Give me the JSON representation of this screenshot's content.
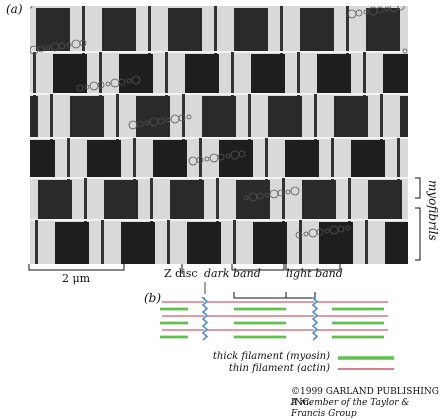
{
  "labels": {
    "panel_a": "(a)",
    "panel_b": "(b)",
    "scale_bar": "2 μm",
    "z_disc": "Z disc",
    "dark_band": "dark band",
    "light_band": "light band",
    "myofibrils": "myofibrils"
  },
  "legend": {
    "thick": "thick filament (myosin)",
    "thin": "thin filament (actin)"
  },
  "colors": {
    "thick": "#5cc24a",
    "thin": "#c8324a",
    "z_disc": "#4a8fd8"
  },
  "copyright": {
    "line1": "©1999 GARLAND PUBLISHING INC.",
    "line2": "A member of the Taylor & Francis Group"
  }
}
